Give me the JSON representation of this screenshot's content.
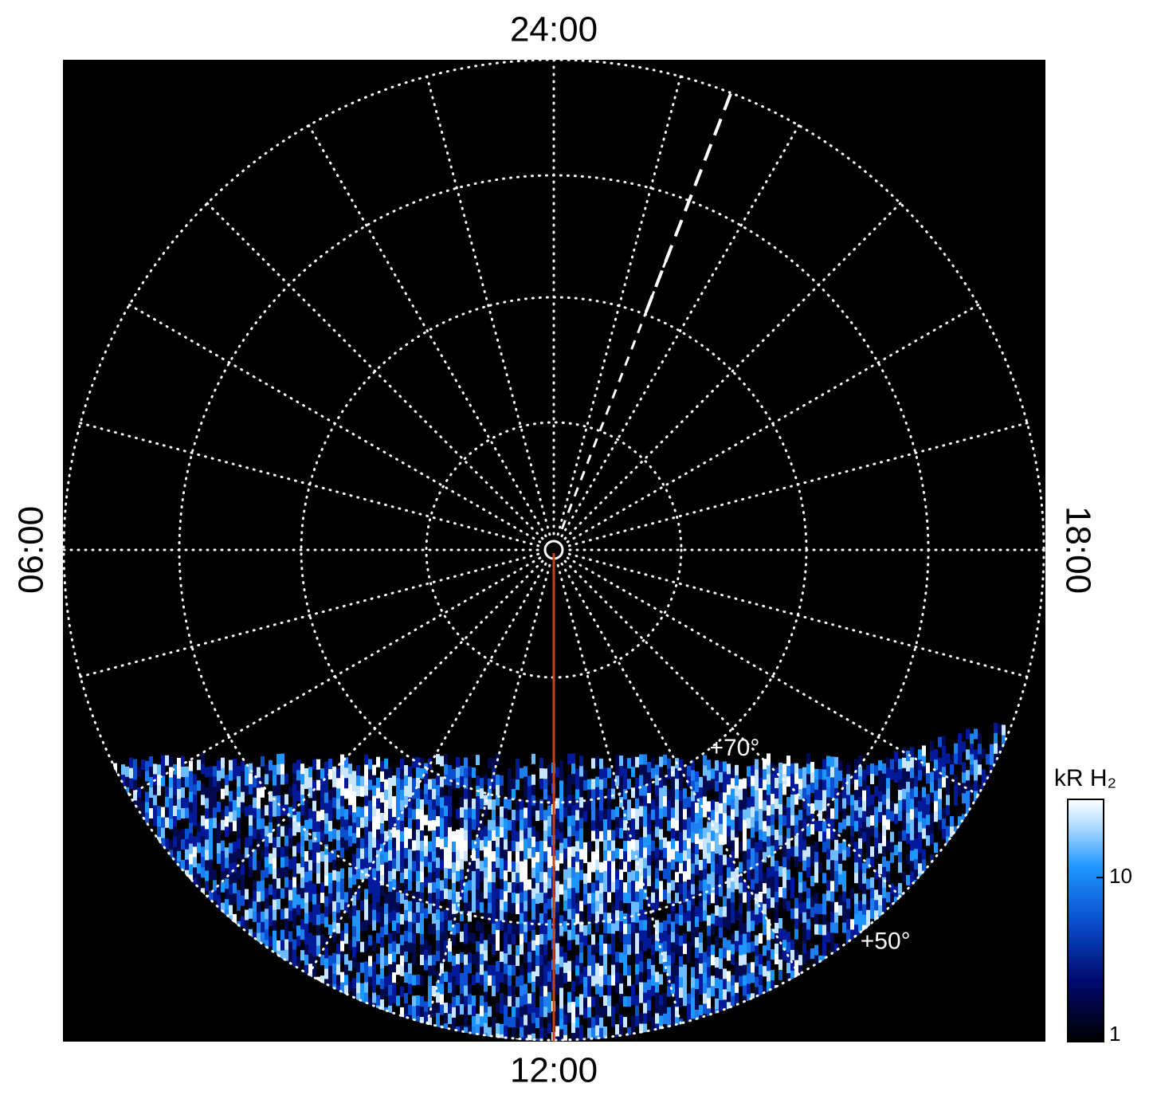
{
  "chart_data": {
    "type": "polar",
    "local_time_labels": {
      "top": "24:00",
      "left": "06:00",
      "right": "18:00",
      "bottom": "12:00"
    },
    "latitude_labels": [
      {
        "value": 70,
        "label": "+70°"
      },
      {
        "value": 50,
        "label": "+50°"
      }
    ],
    "colorbar": {
      "label": "kR H₂",
      "scale": "log",
      "lim": [
        1,
        30
      ],
      "ticks": [
        1,
        10
      ]
    }
  }
}
